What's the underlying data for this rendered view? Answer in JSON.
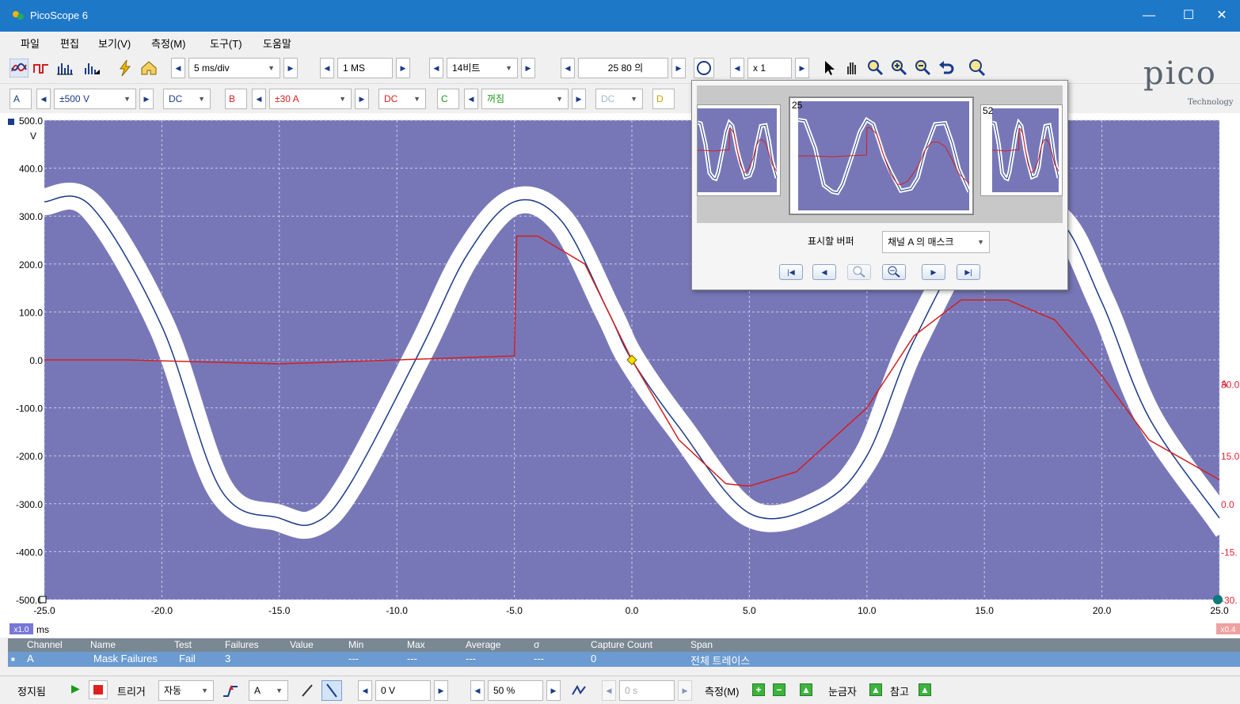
{
  "window": {
    "title": "PicoScope 6",
    "minimize": "—",
    "maximize": "☐",
    "close": "✕"
  },
  "menu": [
    "파일",
    "편집",
    "보기(V)",
    "측정(M)",
    "도구(T)",
    "도움말"
  ],
  "toolbar": {
    "timebase": "5 ms/div",
    "samples": "1 MS",
    "resolution": "14비트",
    "buffer": "25 80 의",
    "zoom": "x 1",
    "logo": "pico",
    "logo_sub": "Technology"
  },
  "channels": [
    {
      "label": "A",
      "range": "±500 V",
      "coupling": "DC",
      "color": "#1a3a8a"
    },
    {
      "label": "B",
      "range": "±30 A",
      "coupling": "DC",
      "color": "#d22020"
    },
    {
      "label": "C",
      "range": "꺼짐",
      "coupling": "DC",
      "color": "#1a9a1a"
    },
    {
      "label": "D",
      "range": "",
      "coupling": "",
      "color": "#c8a000"
    }
  ],
  "plot": {
    "left_unit": "V",
    "right_unit": "A",
    "x_unit": "ms",
    "x_zoom": "x1.0",
    "right_zoom": "x0.4",
    "left_ticks": [
      "500.0",
      "400.0",
      "300.0",
      "200.0",
      "100.0",
      "0.0",
      "-100.0",
      "-200.0",
      "-300.0",
      "-400.0",
      "-500.0"
    ],
    "right_ticks": [
      "30.0",
      "15.0",
      "0.0",
      "-15.",
      "-30."
    ],
    "x_ticks": [
      "-25.0",
      "-20.0",
      "-15.0",
      "-10.0",
      "-5.0",
      "0.0",
      "5.0",
      "10.0",
      "15.0",
      "20.0",
      "25.0"
    ],
    "background": "#7777b8"
  },
  "chart_data": {
    "type": "line",
    "x_range": [
      -25,
      25
    ],
    "y_range": [
      -500,
      500
    ],
    "y2_range": [
      -30,
      30
    ],
    "series": [
      {
        "name": "A",
        "axis": "left",
        "color": "#1a3a8a",
        "x": [
          -25,
          -23,
          -20,
          -17.5,
          -15,
          -13.5,
          -12,
          -9,
          -7,
          -5,
          -3,
          -1,
          0,
          2,
          5,
          8,
          10,
          12,
          15,
          18,
          20,
          22,
          25
        ],
        "y": [
          330,
          320,
          70,
          -270,
          -330,
          -340,
          -260,
          20,
          220,
          330,
          290,
          100,
          0,
          -140,
          -320,
          -300,
          -200,
          40,
          290,
          300,
          120,
          -120,
          -330
        ]
      },
      {
        "name": "B",
        "axis": "right",
        "color": "#d22020",
        "x": [
          -25,
          -21.5,
          -15,
          -10,
          -5,
          -4.9,
          -4,
          -2,
          0,
          2,
          4,
          5,
          7,
          10,
          12,
          14,
          16,
          18,
          20,
          22,
          25
        ],
        "y": [
          0,
          0,
          -0.5,
          0,
          0.5,
          15.5,
          15.5,
          12,
          0,
          -10,
          -15.5,
          -15.8,
          -14,
          -6,
          3,
          7.5,
          7.5,
          5,
          -2,
          -10,
          -15
        ]
      }
    ]
  },
  "popup": {
    "thumb_left_num": "",
    "thumb_center_num": "25",
    "thumb_right_num": "52",
    "buffer_label": "표시할 버퍼",
    "buffer_value": "채널 A 의 매스크"
  },
  "table": {
    "headers": [
      "Channel",
      "Name",
      "Test",
      "Failures",
      "Value",
      "Min",
      "Max",
      "Average",
      "σ",
      "Capture Count",
      "Span"
    ],
    "row": [
      "A",
      "Mask Failures",
      "Fail",
      "3",
      "",
      "---",
      "---",
      "---",
      "---",
      "0",
      "전체 트레이스"
    ]
  },
  "status": {
    "state": "정지됨",
    "trigger_label": "트리거",
    "trigger_mode": "자동",
    "trigger_channel": "A",
    "trigger_level": "0 V",
    "pretrigger": "50 %",
    "delay": "0 s",
    "measure": "측정(M)",
    "ruler": "눈금자",
    "reference": "참고"
  }
}
